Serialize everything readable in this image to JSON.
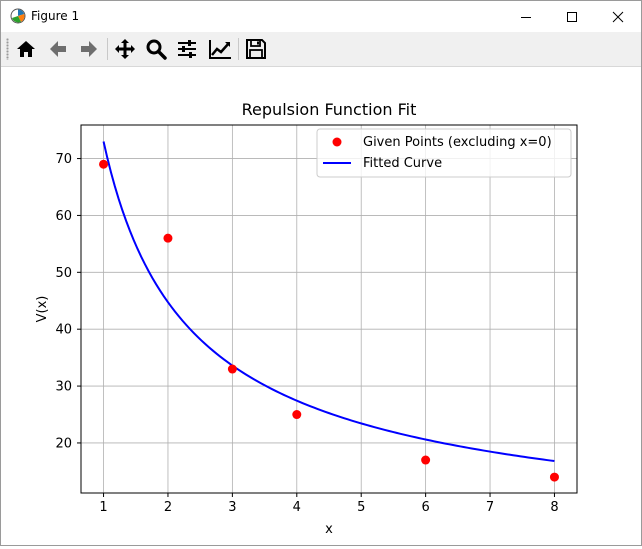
{
  "window": {
    "title": "Figure 1"
  },
  "toolbar": {
    "buttons": [
      {
        "name": "home",
        "icon": "home-icon"
      },
      {
        "name": "back",
        "icon": "arrow-left-icon"
      },
      {
        "name": "forward",
        "icon": "arrow-right-icon"
      },
      {
        "name": "pan",
        "icon": "move-icon"
      },
      {
        "name": "zoom",
        "icon": "zoom-icon"
      },
      {
        "name": "configure-subplots",
        "icon": "sliders-icon"
      },
      {
        "name": "edit-axes",
        "icon": "line-chart-icon"
      },
      {
        "name": "save",
        "icon": "save-icon"
      }
    ]
  },
  "chart_data": {
    "type": "scatter",
    "title": "Repulsion Function Fit",
    "xlabel": "x",
    "ylabel": "V(x)",
    "xlim": [
      0.65,
      8.35
    ],
    "ylim": [
      11.2,
      75.9
    ],
    "xticks": [
      1,
      2,
      3,
      4,
      5,
      6,
      7,
      8
    ],
    "yticks": [
      20,
      30,
      40,
      50,
      60,
      70
    ],
    "grid": true,
    "legend_position": "top-right",
    "series": [
      {
        "name": "Given Points (excluding x=0)",
        "kind": "scatter",
        "color": "#ff0000",
        "x": [
          1,
          2,
          3,
          4,
          6,
          8
        ],
        "y": [
          69,
          56,
          33,
          25,
          17,
          14
        ]
      },
      {
        "name": "Fitted Curve",
        "kind": "line",
        "color": "#0000ff",
        "formula": "y = a / x^b",
        "a": 73,
        "b": 0.706,
        "x_range": [
          1,
          8
        ]
      }
    ]
  }
}
